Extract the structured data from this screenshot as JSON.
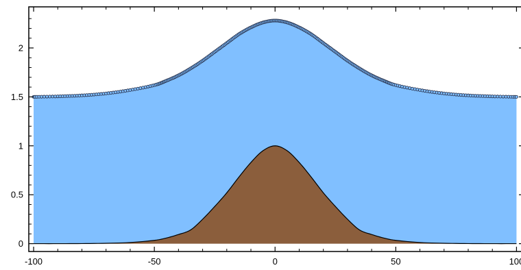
{
  "chart_data": {
    "type": "area",
    "title": "",
    "xlabel": "",
    "ylabel": "",
    "xlim": [
      -102,
      103
    ],
    "ylim": [
      -0.08,
      2.42
    ],
    "grid": false,
    "xticks": [
      {
        "value": -100,
        "label": "-100"
      },
      {
        "value": -50,
        "label": "-50"
      },
      {
        "value": 0,
        "label": "0"
      },
      {
        "value": 50,
        "label": "50"
      },
      {
        "value": 100,
        "label": "100"
      }
    ],
    "yticks": [
      {
        "value": 0,
        "label": "0"
      },
      {
        "value": 0.5,
        "label": "0.5"
      },
      {
        "value": 1,
        "label": "1"
      },
      {
        "value": 1.5,
        "label": "1.5"
      },
      {
        "value": 2,
        "label": "2"
      }
    ],
    "series": [
      {
        "role": "bottom-topography",
        "fill": "#8b5e3c",
        "line": "#000000",
        "x": [
          -100,
          -90,
          -80,
          -70,
          -60,
          -50,
          -45,
          -40,
          -35,
          -30,
          -25,
          -20,
          -15,
          -10,
          -5,
          0,
          5,
          10,
          15,
          20,
          25,
          30,
          35,
          40,
          45,
          50,
          60,
          70,
          80,
          90,
          100
        ],
        "y": [
          0.0,
          0.0,
          0.001,
          0.004,
          0.012,
          0.034,
          0.058,
          0.094,
          0.14,
          0.25,
          0.38,
          0.52,
          0.68,
          0.83,
          0.95,
          1.0,
          0.95,
          0.83,
          0.68,
          0.52,
          0.38,
          0.25,
          0.14,
          0.094,
          0.058,
          0.034,
          0.012,
          0.004,
          0.001,
          0.0,
          0.0
        ]
      },
      {
        "role": "water-surface",
        "fill": "#80bfff",
        "marker_fill": "#80bfff",
        "marker_edge": "#2a3550",
        "x": [
          -100,
          -90,
          -80,
          -70,
          -60,
          -50,
          -45,
          -40,
          -35,
          -30,
          -25,
          -20,
          -15,
          -10,
          -5,
          0,
          5,
          10,
          15,
          20,
          25,
          30,
          35,
          40,
          45,
          50,
          60,
          70,
          80,
          90,
          100
        ],
        "y": [
          1.5,
          1.505,
          1.515,
          1.535,
          1.57,
          1.62,
          1.665,
          1.72,
          1.79,
          1.87,
          1.96,
          2.05,
          2.14,
          2.21,
          2.26,
          2.28,
          2.26,
          2.21,
          2.14,
          2.05,
          1.96,
          1.87,
          1.79,
          1.72,
          1.665,
          1.62,
          1.57,
          1.535,
          1.515,
          1.505,
          1.5
        ]
      }
    ]
  }
}
